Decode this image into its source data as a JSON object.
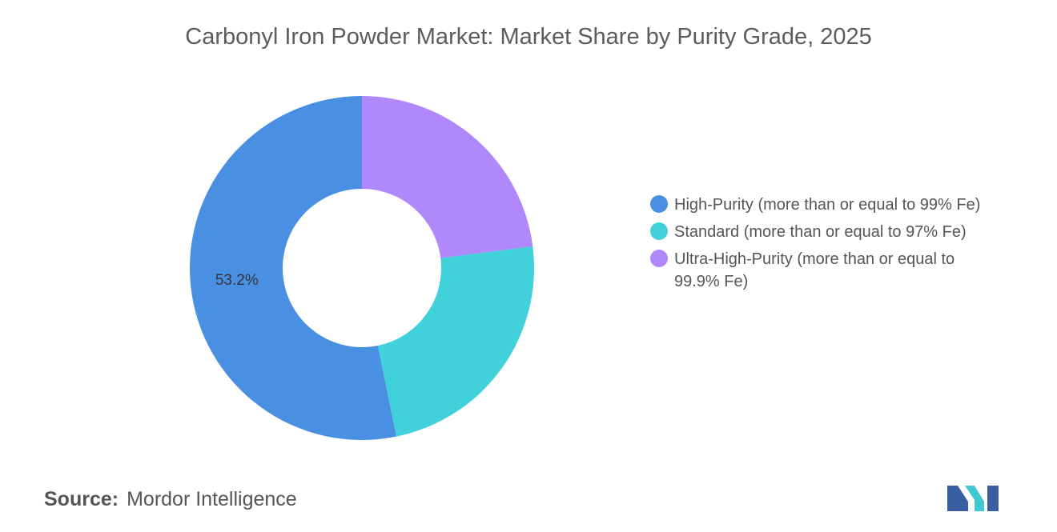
{
  "title": "Carbonyl Iron Powder Market: Market Share by Purity Grade, 2025",
  "chart_data": {
    "type": "pie",
    "donut": true,
    "title": "Carbonyl Iron Powder Market: Market Share by Purity Grade, 2025",
    "slices": [
      {
        "label": "High-Purity (more than or equal to 99% Fe)",
        "value": 53.2,
        "color": "#4a90e2",
        "data_label": "53.2%"
      },
      {
        "label": "Standard (more than or equal to 97% Fe)",
        "value": 23.8,
        "color": "#40d1da",
        "data_label": ""
      },
      {
        "label": "Ultra-High-Purity (more than or equal to 99.9% Fe)",
        "value": 23.0,
        "color": "#b088fc",
        "data_label": ""
      }
    ],
    "legend_position": "right"
  },
  "source": {
    "prefix": "Source:",
    "name": "Mordor Intelligence"
  },
  "logo": {
    "icon": "mordor-intelligence-logo",
    "colors": [
      "#3a5fa0",
      "#3fc7d4"
    ]
  }
}
